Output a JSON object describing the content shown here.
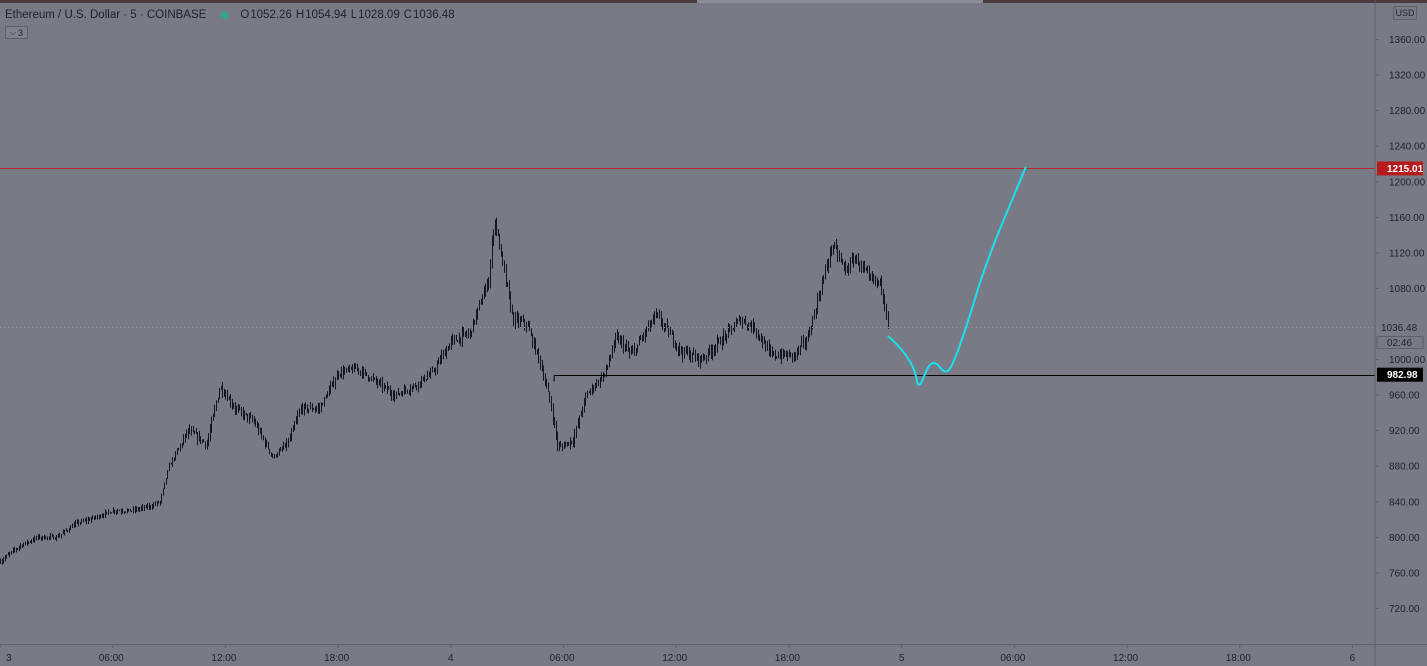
{
  "header": {
    "symbol": "Ethereum / U.S. Dollar · 5 · COINBASE",
    "open_key": "O",
    "open": "1052.26",
    "high_key": "H",
    "high": "1054.94",
    "low_key": "L",
    "low": "1028.09",
    "close_key": "C",
    "close": "1036.48",
    "indicators_count": "3"
  },
  "currency_button": "USD",
  "colors": {
    "background": "#787b86",
    "candles": "#131722",
    "resistance_line": "#b22833",
    "support_line": "#000000",
    "projection": "#18e1f0",
    "resistance_badge": "#b71c1c"
  },
  "chart_data": {
    "type": "candlestick",
    "symbol": "Ethereum / U.S. Dollar",
    "interval": "5",
    "exchange": "COINBASE",
    "y_axis": {
      "ylim": [
        680,
        1400
      ],
      "ticks": [
        "1360.00",
        "1320.00",
        "1280.00",
        "1240.00",
        "1200.00",
        "1160.00",
        "1120.00",
        "1080.00",
        "1000.00",
        "960.00",
        "920.00",
        "880.00",
        "840.00",
        "800.00",
        "760.00",
        "720.00"
      ],
      "tick_values": [
        1360,
        1320,
        1280,
        1240,
        1200,
        1160,
        1120,
        1080,
        1000,
        960,
        920,
        880,
        840,
        800,
        760,
        720
      ],
      "position": "right"
    },
    "x_axis": {
      "ticks": [
        "3",
        "06:00",
        "12:00",
        "18:00",
        "4",
        "06:00",
        "12:00",
        "18:00",
        "5",
        "06:00",
        "12:00",
        "18:00",
        "6"
      ],
      "tick_hours": [
        0,
        6,
        12,
        18,
        24,
        30,
        36,
        42,
        48,
        54,
        60,
        66,
        72
      ],
      "xlim_hours": [
        0,
        73.2
      ]
    },
    "price_path": [
      [
        0,
        773
      ],
      [
        1,
        790
      ],
      [
        2,
        800
      ],
      [
        3,
        800
      ],
      [
        4,
        815
      ],
      [
        5,
        822
      ],
      [
        6,
        830
      ],
      [
        7,
        830
      ],
      [
        8,
        835
      ],
      [
        8.5,
        840
      ],
      [
        9,
        880
      ],
      [
        9.5,
        900
      ],
      [
        10,
        920
      ],
      [
        11,
        905
      ],
      [
        11.7,
        970
      ],
      [
        12.5,
        945
      ],
      [
        13.5,
        930
      ],
      [
        14.5,
        890
      ],
      [
        15.3,
        905
      ],
      [
        16,
        945
      ],
      [
        17,
        945
      ],
      [
        18,
        985
      ],
      [
        19,
        990
      ],
      [
        20,
        975
      ],
      [
        21,
        960
      ],
      [
        22,
        970
      ],
      [
        23,
        985
      ],
      [
        24,
        1020
      ],
      [
        25,
        1030
      ],
      [
        26,
        1090
      ],
      [
        26.3,
        1160
      ],
      [
        26.9,
        1090
      ],
      [
        27.3,
        1045
      ],
      [
        28,
        1040
      ],
      [
        28.7,
        1000
      ],
      [
        29.3,
        950
      ],
      [
        29.7,
        900
      ],
      [
        30.5,
        910
      ],
      [
        31.2,
        960
      ],
      [
        32.2,
        985
      ],
      [
        32.8,
        1025
      ],
      [
        33.6,
        1005
      ],
      [
        34.9,
        1050
      ],
      [
        35.6,
        1030
      ],
      [
        36.2,
        1010
      ],
      [
        37.3,
        1000
      ],
      [
        38.3,
        1020
      ],
      [
        39.4,
        1045
      ],
      [
        40.2,
        1035
      ],
      [
        41,
        1005
      ],
      [
        42.3,
        1005
      ],
      [
        43,
        1025
      ],
      [
        43.8,
        1090
      ],
      [
        44.3,
        1130
      ],
      [
        45,
        1100
      ],
      [
        45.5,
        1115
      ],
      [
        46.3,
        1090
      ],
      [
        46.9,
        1085
      ],
      [
        47.3,
        1036
      ]
    ],
    "current_price": {
      "value": "1036.48",
      "countdown": "02:46"
    },
    "levels": [
      {
        "label": "1215.01",
        "value": 1215.01,
        "style": "resistance",
        "from_hour": 0
      },
      {
        "label": "982.98",
        "value": 982.98,
        "style": "support",
        "from_hour": 29.5
      }
    ],
    "projection": {
      "description": "hand-drawn forecast path",
      "points": [
        [
          47.3,
          1026
        ],
        [
          48,
          1012
        ],
        [
          48.7,
          990
        ],
        [
          48.9,
          965
        ],
        [
          49.4,
          993
        ],
        [
          49.8,
          998
        ],
        [
          50.3,
          984
        ],
        [
          50.7,
          992
        ],
        [
          51.5,
          1040
        ],
        [
          52.5,
          1110
        ],
        [
          54.6,
          1216
        ]
      ]
    }
  }
}
